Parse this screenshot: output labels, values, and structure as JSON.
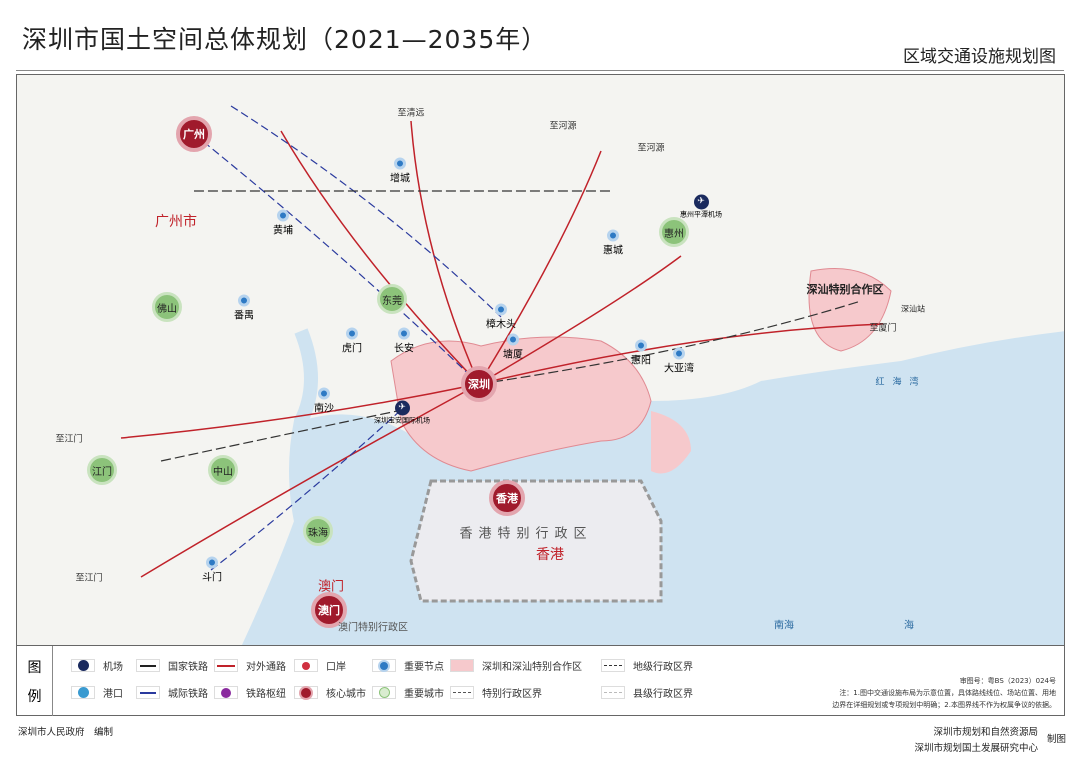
{
  "header": {
    "title": "深圳市国土空间总体规划（2021—2035年）",
    "subtitle": "区域交通设施规划图"
  },
  "map": {
    "core_cities": [
      {
        "name": "广州"
      },
      {
        "name": "深圳"
      },
      {
        "name": "香港"
      },
      {
        "name": "澳门"
      }
    ],
    "important_cities": [
      {
        "name": "佛山"
      },
      {
        "name": "东莞"
      },
      {
        "name": "惠州"
      },
      {
        "name": "江门"
      },
      {
        "name": "中山"
      },
      {
        "name": "珠海"
      }
    ],
    "nodes": [
      {
        "name": "增城"
      },
      {
        "name": "黄埔"
      },
      {
        "name": "番禺"
      },
      {
        "name": "虎门"
      },
      {
        "name": "长安"
      },
      {
        "name": "南沙"
      },
      {
        "name": "樟木头"
      },
      {
        "name": "塘厦"
      },
      {
        "name": "惠城"
      },
      {
        "name": "惠阳"
      },
      {
        "name": "大亚湾"
      },
      {
        "name": "斗门"
      }
    ],
    "airports": [
      {
        "name": "深圳宝安国际机场"
      },
      {
        "name": "惠州平潭机场"
      }
    ],
    "directions": [
      "至清远",
      "至河源",
      "至河源",
      "至江门",
      "至江门",
      "至厦门"
    ],
    "labels": {
      "guangzhou_city": "广州市",
      "hongkong_city": "香港",
      "hk_sar": "香港特别行政区",
      "macau_sar": "澳门特别行政区",
      "macau_city": "澳门",
      "shanwei": "深汕特别合作区",
      "hongwan": "红海湾",
      "nanhai": "南海",
      "hai": "海",
      "shantou_station": "深汕站"
    },
    "colors": {
      "sea": "#cfe3f1",
      "land": "#f5f5f2",
      "shenzhen": "#f6c9cc",
      "road": "#c0222a",
      "rail_national": "#333333",
      "rail_intercity": "#2a3a9e",
      "core": "#a01a2c",
      "important": "#8cc37a",
      "node": "#2e7ac4"
    }
  },
  "legend": {
    "title": [
      "图",
      "例"
    ],
    "items": [
      {
        "label": "机场",
        "icon": "airport-icon"
      },
      {
        "label": "港口",
        "icon": "port-icon"
      },
      {
        "label": "国家铁路",
        "icon": "national-rail-icon"
      },
      {
        "label": "城际铁路",
        "icon": "intercity-rail-icon"
      },
      {
        "label": "对外通路",
        "icon": "external-road-icon"
      },
      {
        "label": "铁路枢纽",
        "icon": "rail-hub-icon"
      },
      {
        "label": "口岸",
        "icon": "port-of-entry-icon"
      },
      {
        "label": "核心城市",
        "icon": "core-city-icon"
      },
      {
        "label": "重要节点",
        "icon": "node-icon"
      },
      {
        "label": "重要城市",
        "icon": "important-city-icon"
      },
      {
        "label": "深圳和深汕特别合作区",
        "icon": "zone-fill-icon"
      },
      {
        "label": "特别行政区界",
        "icon": "sar-boundary-icon"
      },
      {
        "label": "地级行政区界",
        "icon": "prefecture-boundary-icon"
      },
      {
        "label": "县级行政区界",
        "icon": "county-boundary-icon"
      }
    ],
    "approval": "审图号：粤BS（2023）024号",
    "note": [
      "注：1.图中交通设施布局为示意位置，具体路线线位、场站位置、用地",
      "边界在详细规划或专项规划中明确；2.本图界线不作为权属争议的依据。"
    ]
  },
  "footer": {
    "left": "深圳市人民政府　编制",
    "org1": "深圳市规划和自然资源局",
    "org2": "深圳市规划国土发展研究中心",
    "made": "制图"
  }
}
